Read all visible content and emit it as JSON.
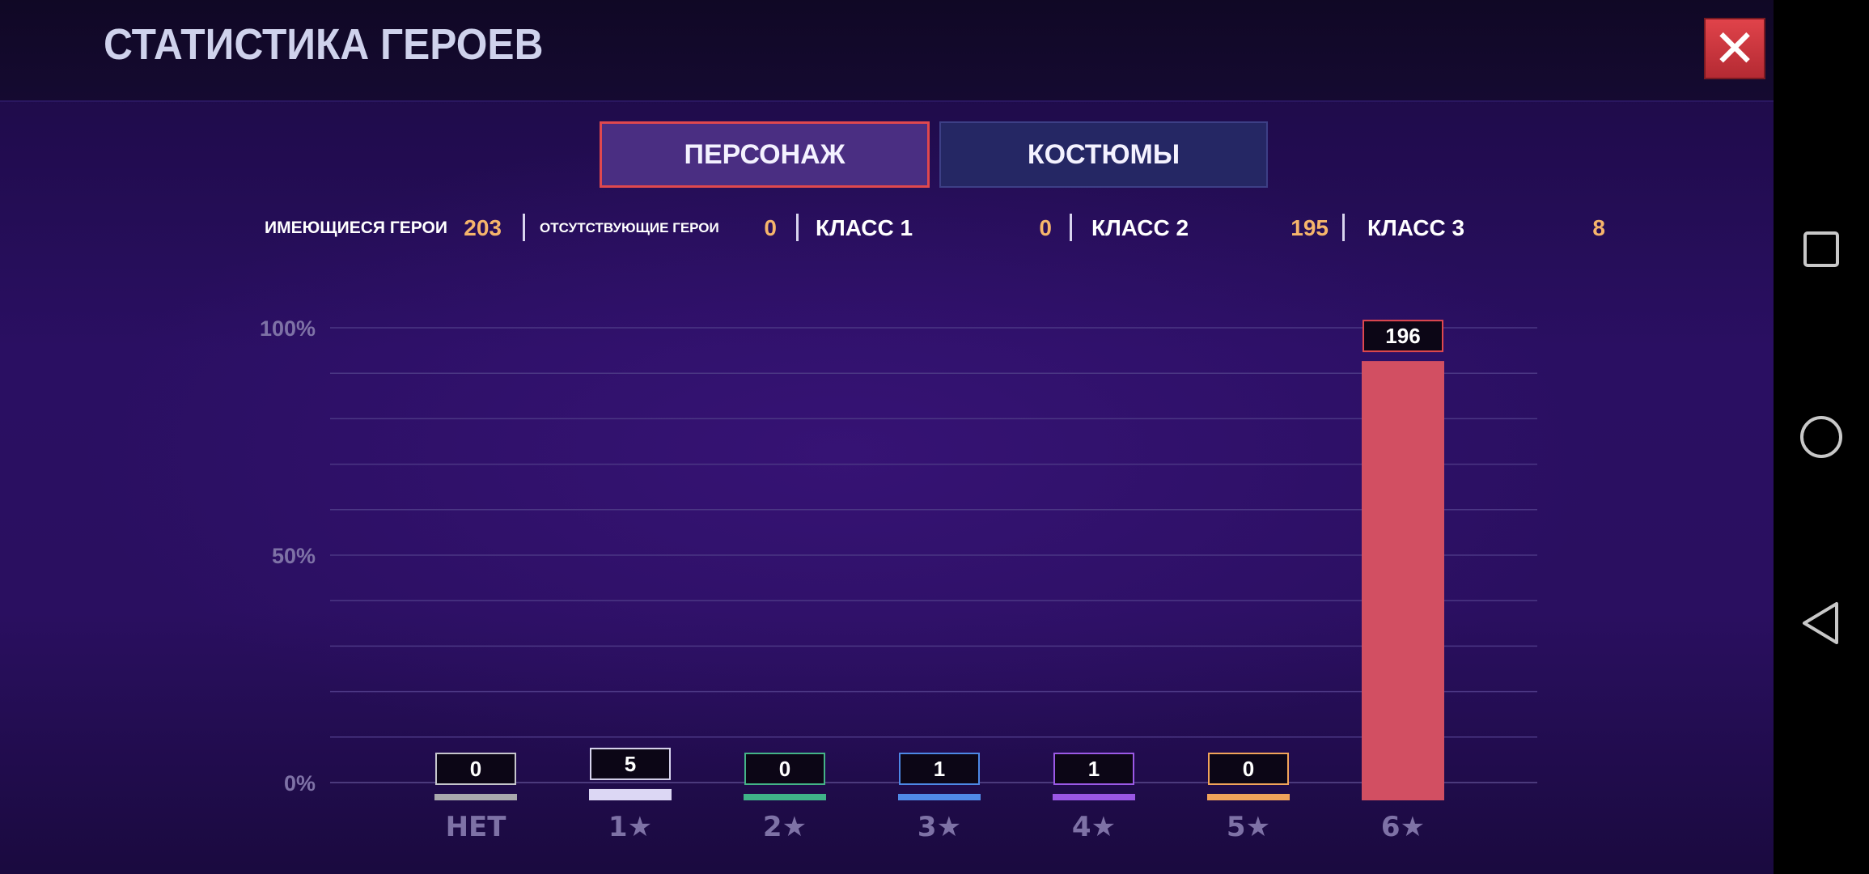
{
  "header": {
    "title": "СТАТИСТИКА ГЕРОЕВ",
    "close_icon": "close-icon"
  },
  "tabs": [
    {
      "label": "ПЕРСОНАЖ",
      "active": true
    },
    {
      "label": "КОСТЮМЫ",
      "active": false
    }
  ],
  "stats": {
    "owned_label": "ИМЕЮЩИЕСЯ ГЕРОИ",
    "owned_value": "203",
    "missing_label": "ОТСУТСТВУЮЩИЕ ГЕРОИ",
    "missing_value": "0",
    "class1_label": "КЛАСС 1",
    "class1_value": "0",
    "class2_label": "КЛАСС 2",
    "class2_value": "195",
    "class3_label": "КЛАСС 3",
    "class3_value": "8"
  },
  "chart_data": {
    "type": "bar",
    "categories": [
      "НЕТ",
      "1★",
      "2★",
      "3★",
      "4★",
      "5★",
      "6★"
    ],
    "values": [
      0,
      5,
      0,
      1,
      1,
      0,
      196
    ],
    "value_labels": [
      "0",
      "5",
      "0",
      "1",
      "1",
      "0",
      "196"
    ],
    "percent": [
      0,
      2.5,
      0,
      0.5,
      0.5,
      0,
      96.6
    ],
    "y_ticks": [
      {
        "value": 100,
        "label": "100%"
      },
      {
        "value": 50,
        "label": "50%"
      },
      {
        "value": 0,
        "label": "0%"
      }
    ],
    "ylim": [
      0,
      100
    ],
    "grid": true,
    "colors": [
      "#a9a9ad",
      "#dcd7f4",
      "#3fb388",
      "#4f8ae6",
      "#9a57e4",
      "#f0a35a",
      "#d24f62"
    ],
    "label_border_colors": [
      "#c6c6cc",
      "#d8d4ee",
      "#44b487",
      "#4d88e6",
      "#9b59e6",
      "#f2a45a",
      "#e0484e"
    ]
  },
  "nav": {
    "items": [
      "recent-apps-icon",
      "home-icon",
      "back-icon"
    ]
  }
}
